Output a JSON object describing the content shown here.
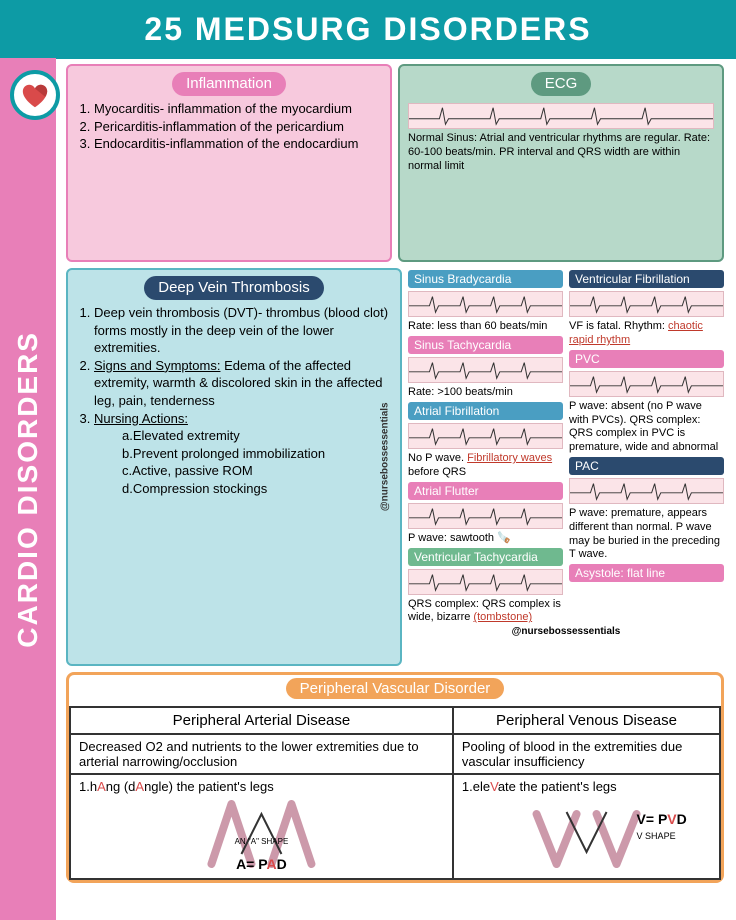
{
  "title": "25 MEDSURG DISORDERS",
  "sidebar": "CARDIO DISORDERS",
  "watermark": "@nursebossessentials",
  "inflammation": {
    "heading": "Inflammation",
    "items": [
      "Myocarditis- inflammation of the myocardium",
      "Pericarditis-inflammation of the pericardium",
      "Endocarditis-inflammation of the endocardium"
    ]
  },
  "ecg": {
    "heading": "ECG",
    "normal": "Normal Sinus: Atrial and ventricular rhythms are regular. Rate: 60-100 beats/min. PR interval and QRS width are within normal limit",
    "left": [
      {
        "label": "Sinus Bradycardia",
        "color": "lbl-blue",
        "desc": "Rate: less than 60 beats/min"
      },
      {
        "label": "Sinus Tachycardia",
        "color": "lbl-pink",
        "desc": "Rate: >100 beats/min"
      },
      {
        "label": "Atrial Fibrillation",
        "color": "lbl-blue",
        "desc_html": "No P wave. <span class='red-ul'>Fibrillatory waves</span> before QRS"
      },
      {
        "label": "Atrial Flutter",
        "color": "lbl-pink",
        "desc": "P wave: sawtooth 🪚"
      },
      {
        "label": "Ventricular Tachycardia",
        "color": "lbl-green",
        "desc_html": "QRS complex: QRS complex is wide, bizarre <span class='red-ul'>(tombstone)</span>"
      }
    ],
    "right": [
      {
        "label": "Ventricular Fibrillation",
        "color": "lbl-navy",
        "desc_html": "VF is fatal. Rhythm: <span class='red-ul'>chaotic rapid rhythm</span>"
      },
      {
        "label": "PVC",
        "color": "lbl-pink",
        "desc": "P wave: absent (no P wave with PVCs). QRS complex: QRS complex in PVC is premature, wide and abnormal"
      },
      {
        "label": "PAC",
        "color": "lbl-navy",
        "desc": "P wave: premature, appears different than normal. P wave may be buried in the preceding T wave."
      },
      {
        "label": "Asystole: flat line",
        "color": "lbl-pink",
        "desc": ""
      }
    ]
  },
  "dvt": {
    "heading": "Deep Vein Thrombosis",
    "item1": "Deep vein thrombosis (DVT)- thrombus (blood clot) forms mostly in the deep vein of the lower extremities.",
    "item2_label": "Signs and Symptoms:",
    "item2_text": " Edema of the affected extremity, warmth & discolored skin in the affected leg, pain, tenderness",
    "item3_label": "Nursing Actions:",
    "subs": [
      "a.Elevated extremity",
      "b.Prevent prolonged immobilization",
      "c.Active, passive ROM",
      "d.Compression stockings"
    ]
  },
  "pvd": {
    "heading": "Peripheral Vascular Disorder",
    "col1_head": "Peripheral Arterial Disease",
    "col2_head": "Peripheral Venous Disease",
    "col1_desc": "Decreased O2 and nutrients to the lower extremities due to arterial narrowing/occlusion",
    "col2_desc": "Pooling of blood in the extremities due vascular insufficiency",
    "col1_action_pre": "1.h",
    "col1_action_a1": "A",
    "col1_action_mid": "ng (d",
    "col1_action_a2": "A",
    "col1_action_post": "ngle) the patient's legs",
    "col2_action_pre": "1.ele",
    "col2_action_v": "V",
    "col2_action_post": "ate the patient's legs",
    "shape_a_label": "AN \"A\" SHAPE",
    "shape_a_eq": "A= PAD",
    "shape_v_eq": "V= PVD",
    "shape_v_label": "V SHAPE"
  }
}
